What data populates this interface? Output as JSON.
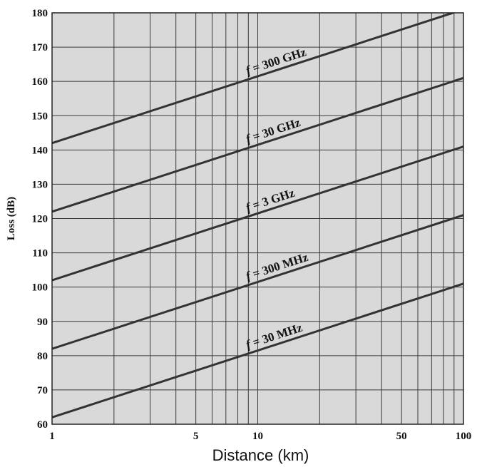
{
  "chart_data": {
    "type": "line",
    "title": "",
    "xlabel": "Distance (km)",
    "ylabel": "Loss (dB)",
    "xscale": "log",
    "xlim": [
      1,
      100
    ],
    "ylim": [
      60,
      180
    ],
    "grid": true,
    "background": "#d9d9d9",
    "line_color": "#333333",
    "x_ticks": [
      {
        "value": 1,
        "label": "1"
      },
      {
        "value": 5,
        "label": "5"
      },
      {
        "value": 10,
        "label": "10"
      },
      {
        "value": 50,
        "label": "50"
      },
      {
        "value": 100,
        "label": "100"
      }
    ],
    "x_gridlines": [
      1,
      2,
      3,
      4,
      5,
      6,
      7,
      8,
      9,
      10,
      20,
      30,
      40,
      50,
      60,
      70,
      80,
      90,
      100
    ],
    "y_ticks": [
      60,
      70,
      80,
      90,
      100,
      110,
      120,
      130,
      140,
      150,
      160,
      170,
      180
    ],
    "series": [
      {
        "name": "f = 30 MHz",
        "f_prefix": "f",
        "f_rest": " = 30 MHz",
        "x": [
          1,
          100
        ],
        "y": [
          62,
          101
        ]
      },
      {
        "name": "f = 300 MHz",
        "f_prefix": "f",
        "f_rest": " = 300 MHz",
        "x": [
          1,
          100
        ],
        "y": [
          82,
          121
        ]
      },
      {
        "name": "f = 3 GHz",
        "f_prefix": "f",
        "f_rest": " = 3 GHz",
        "x": [
          1,
          100
        ],
        "y": [
          102,
          141
        ]
      },
      {
        "name": "f = 30 GHz",
        "f_prefix": "f",
        "f_rest": " = 30 GHz",
        "x": [
          1,
          100
        ],
        "y": [
          122,
          161
        ]
      },
      {
        "name": "f = 300 GHz",
        "f_prefix": "f",
        "f_rest": " = 300 GHz",
        "x": [
          1,
          100
        ],
        "y": [
          142,
          181
        ]
      }
    ]
  }
}
